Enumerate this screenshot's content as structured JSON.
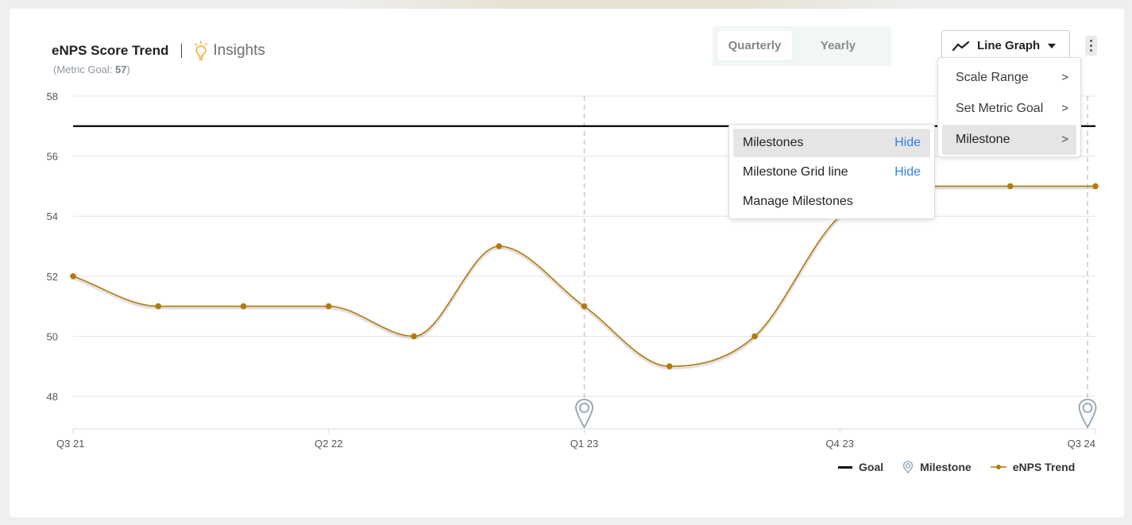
{
  "header": {
    "title": "eNPS Score Trend",
    "insights_label": "Insights",
    "goal_prefix": "(Metric Goal: ",
    "goal_value": "57",
    "goal_suffix": ")"
  },
  "period_toggle": {
    "options": [
      "Quarterly",
      "Yearly"
    ],
    "selected": "Quarterly"
  },
  "graph_type": {
    "label": "Line Graph",
    "icon": "line-graph-icon"
  },
  "menu": {
    "items": [
      {
        "label": "Scale Range",
        "icon": "chevron-right-icon"
      },
      {
        "label": "Set Metric Goal",
        "icon": "chevron-right-icon"
      },
      {
        "label": "Milestone",
        "icon": "chevron-right-icon",
        "selected": true
      }
    ],
    "chevron": ">"
  },
  "submenu": {
    "items": [
      {
        "label": "Milestones",
        "action": "Hide",
        "selected": true
      },
      {
        "label": "Milestone Grid line",
        "action": "Hide"
      },
      {
        "label": "Manage Milestones",
        "action": ""
      }
    ]
  },
  "legend": {
    "goal": "Goal",
    "milestone": "Milestone",
    "trend": "eNPS Trend"
  },
  "colors": {
    "trend": "#b5790b",
    "goal": "#111111",
    "milestone": "#8fa3b3",
    "link": "#2f80ed"
  },
  "chart_data": {
    "type": "line",
    "ylim": [
      47,
      58
    ],
    "yticks": [
      48,
      50,
      52,
      54,
      56,
      58
    ],
    "xticks": [
      "Q3 21",
      "Q2 22",
      "Q1 23",
      "Q4 23",
      "Q3 24"
    ],
    "series": [
      {
        "name": "eNPS Trend",
        "values": [
          52,
          51,
          51,
          51,
          50,
          53,
          51,
          49,
          50,
          54,
          55,
          55,
          55
        ]
      }
    ],
    "goal": 57,
    "milestones_at_index": [
      6,
      12
    ],
    "grid": true
  }
}
